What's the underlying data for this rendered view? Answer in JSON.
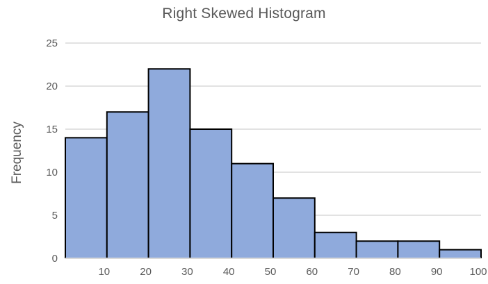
{
  "chart_data": {
    "type": "bar",
    "subtype": "histogram",
    "title": "Right Skewed Histogram",
    "xlabel": "",
    "ylabel": "Frequency",
    "bin_edges": [
      0,
      10,
      20,
      30,
      40,
      50,
      60,
      70,
      80,
      90,
      100
    ],
    "x_tick_labels": [
      "10",
      "20",
      "30",
      "40",
      "50",
      "60",
      "70",
      "80",
      "90",
      "100"
    ],
    "values": [
      14,
      17,
      22,
      15,
      11,
      7,
      3,
      2,
      2,
      1
    ],
    "y_ticks": [
      0,
      5,
      10,
      15,
      20,
      25
    ],
    "ylim": [
      0,
      25
    ],
    "xlim": [
      0,
      100
    ],
    "grid": true,
    "legend": "none",
    "colors": {
      "bar_fill": "#8FAADC",
      "bar_border": "#000000",
      "gridline": "#D9D9D9",
      "axis_line": "#D9D9D9",
      "text": "#595959",
      "background": "#FFFFFF"
    }
  }
}
